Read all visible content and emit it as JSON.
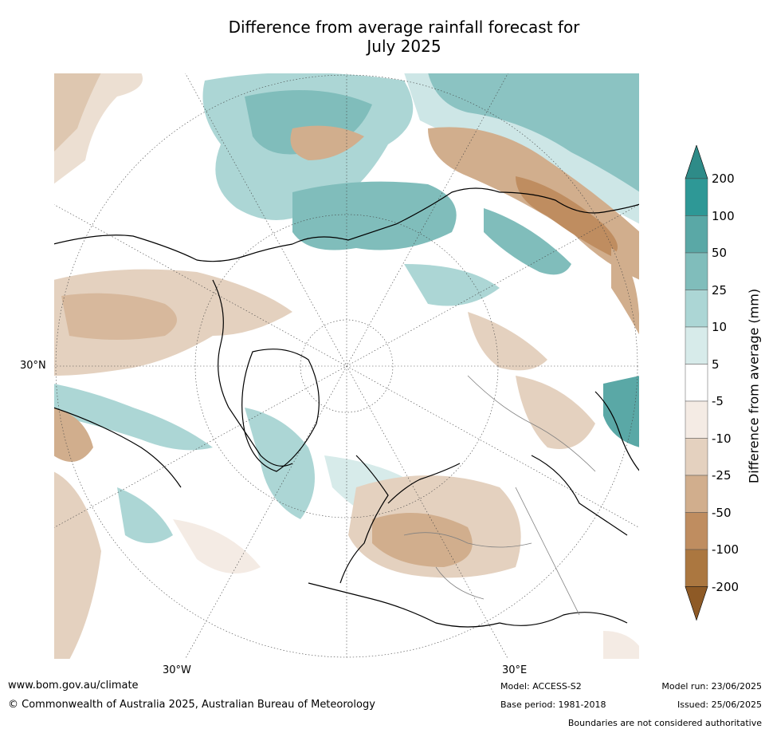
{
  "title_line1": "Difference from average rainfall forecast for",
  "title_line2": "July 2025",
  "map": {
    "projection": "north-polar-stereographic",
    "lat_label": "30°N",
    "lon_labels": [
      "30°W",
      "30°E"
    ],
    "land_color": "#ffffff",
    "coastline_color": "#000000",
    "border_color": "#808080"
  },
  "colorbar": {
    "title": "Difference from average (mm)",
    "ticks": [
      "200",
      "100",
      "50",
      "25",
      "10",
      "5",
      "-5",
      "-10",
      "-25",
      "-50",
      "-100",
      "-200"
    ],
    "colors": [
      "#2e8b88",
      "#2e9896",
      "#5aa8a6",
      "#80bdbb",
      "#acd6d5",
      "#d7ebea",
      "#ffffff",
      "#f4ebe4",
      "#e4d1bf",
      "#d1ae8d",
      "#bf8d60",
      "#ab7740",
      "#8e5a26"
    ]
  },
  "footer": {
    "url": "www.bom.gov.au/climate",
    "copyright": "© Commonwealth of Australia 2025, Australian Bureau of Meteorology",
    "model": "Model: ACCESS-S2",
    "base_period": "Base period: 1981-2018",
    "model_run": "Model run: 23/06/2025",
    "issued": "Issued: 25/06/2025",
    "disclaimer": "Boundaries are not considered authoritative"
  }
}
